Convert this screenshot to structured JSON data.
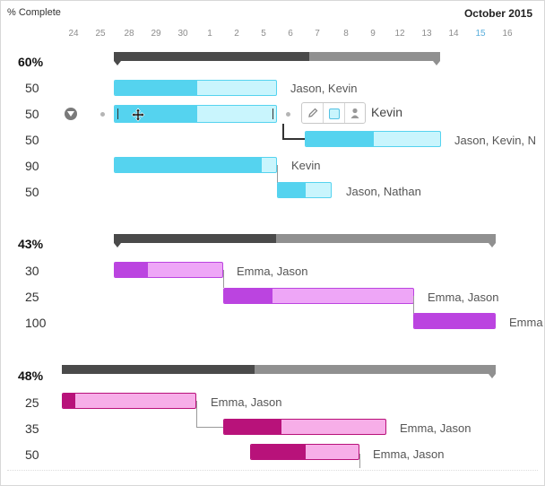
{
  "header": {
    "column_label": "% Complete",
    "month": "October 2015"
  },
  "days": [
    "24",
    "25",
    "28",
    "29",
    "30",
    "1",
    "2",
    "5",
    "6",
    "7",
    "8",
    "9",
    "12",
    "13",
    "14",
    "15",
    "16"
  ],
  "groups": [
    {
      "percent": "60%",
      "rows": [
        {
          "percent": "50",
          "assignees": "Jason, Kevin"
        },
        {
          "percent": "50",
          "assignees": "Kevin"
        },
        {
          "percent": "50",
          "assignees": "Jason, Kevin, N"
        },
        {
          "percent": "90",
          "assignees": "Kevin"
        },
        {
          "percent": "50",
          "assignees": "Jason, Nathan"
        }
      ]
    },
    {
      "percent": "43%",
      "rows": [
        {
          "percent": "30",
          "assignees": "Emma, Jason"
        },
        {
          "percent": "25",
          "assignees": "Emma, Jason"
        },
        {
          "percent": "100",
          "assignees": "Emma"
        }
      ]
    },
    {
      "percent": "48%",
      "rows": [
        {
          "percent": "25",
          "assignees": "Emma, Jason"
        },
        {
          "percent": "35",
          "assignees": "Emma, Jason"
        },
        {
          "percent": "50",
          "assignees": "Emma, Jason"
        }
      ]
    }
  ],
  "colors": {
    "blue_done": "#55d3ef",
    "blue_rest": "#c9f5fd",
    "blue_border": "#55d3ef",
    "purple_done": "#bb44e0",
    "purple_rest": "#eea6f7",
    "magenta_done": "#b8127a",
    "magenta_rest": "#f7aee8",
    "summary_done": "#4a4a4a",
    "summary_rest": "#909090"
  },
  "icons": [
    "collapse-arrow-icon",
    "move-icon",
    "pencil-icon",
    "color-swatch-icon",
    "person-icon"
  ]
}
